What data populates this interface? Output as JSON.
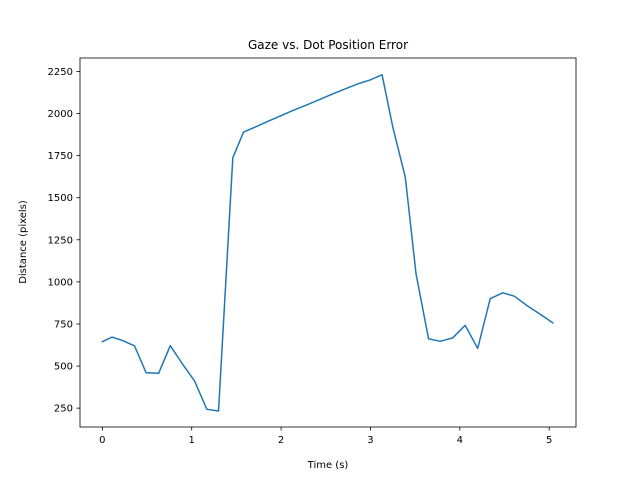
{
  "chart_data": {
    "type": "line",
    "title": "Gaze vs. Dot Position Error",
    "xlabel": "Time (s)",
    "ylabel": "Distance (pixels)",
    "xlim": [
      -0.25,
      5.3
    ],
    "ylim": [
      138,
      2330
    ],
    "xticks": [
      0,
      1,
      2,
      3,
      4,
      5
    ],
    "xtick_labels": [
      "0",
      "1",
      "2",
      "3",
      "4",
      "5"
    ],
    "yticks": [
      250,
      500,
      750,
      1000,
      1250,
      1500,
      1750,
      2000,
      2250
    ],
    "ytick_labels": [
      "250",
      "500",
      "750",
      "1000",
      "1250",
      "1500",
      "1750",
      "2000",
      "2250"
    ],
    "grid": false,
    "series": [
      {
        "color": "#1f77b4",
        "x": [
          0.0,
          0.11,
          0.22,
          0.36,
          0.49,
          0.63,
          0.76,
          0.9,
          1.03,
          1.17,
          1.3,
          1.46,
          1.58,
          1.72,
          1.85,
          1.99,
          2.13,
          2.28,
          2.43,
          2.58,
          2.72,
          2.86,
          2.99,
          3.13,
          3.25,
          3.39,
          3.51,
          3.65,
          3.78,
          3.92,
          4.06,
          4.2,
          4.34,
          4.48,
          4.61,
          4.76,
          4.9,
          5.04
        ],
        "y": [
          645,
          672,
          653,
          620,
          460,
          457,
          621,
          510,
          413,
          243,
          233,
          1738,
          1890,
          1922,
          1953,
          1985,
          2018,
          2050,
          2083,
          2117,
          2147,
          2177,
          2198,
          2230,
          1920,
          1622,
          1048,
          662,
          647,
          667,
          742,
          605,
          900,
          935,
          915,
          856,
          808,
          757
        ]
      }
    ]
  }
}
